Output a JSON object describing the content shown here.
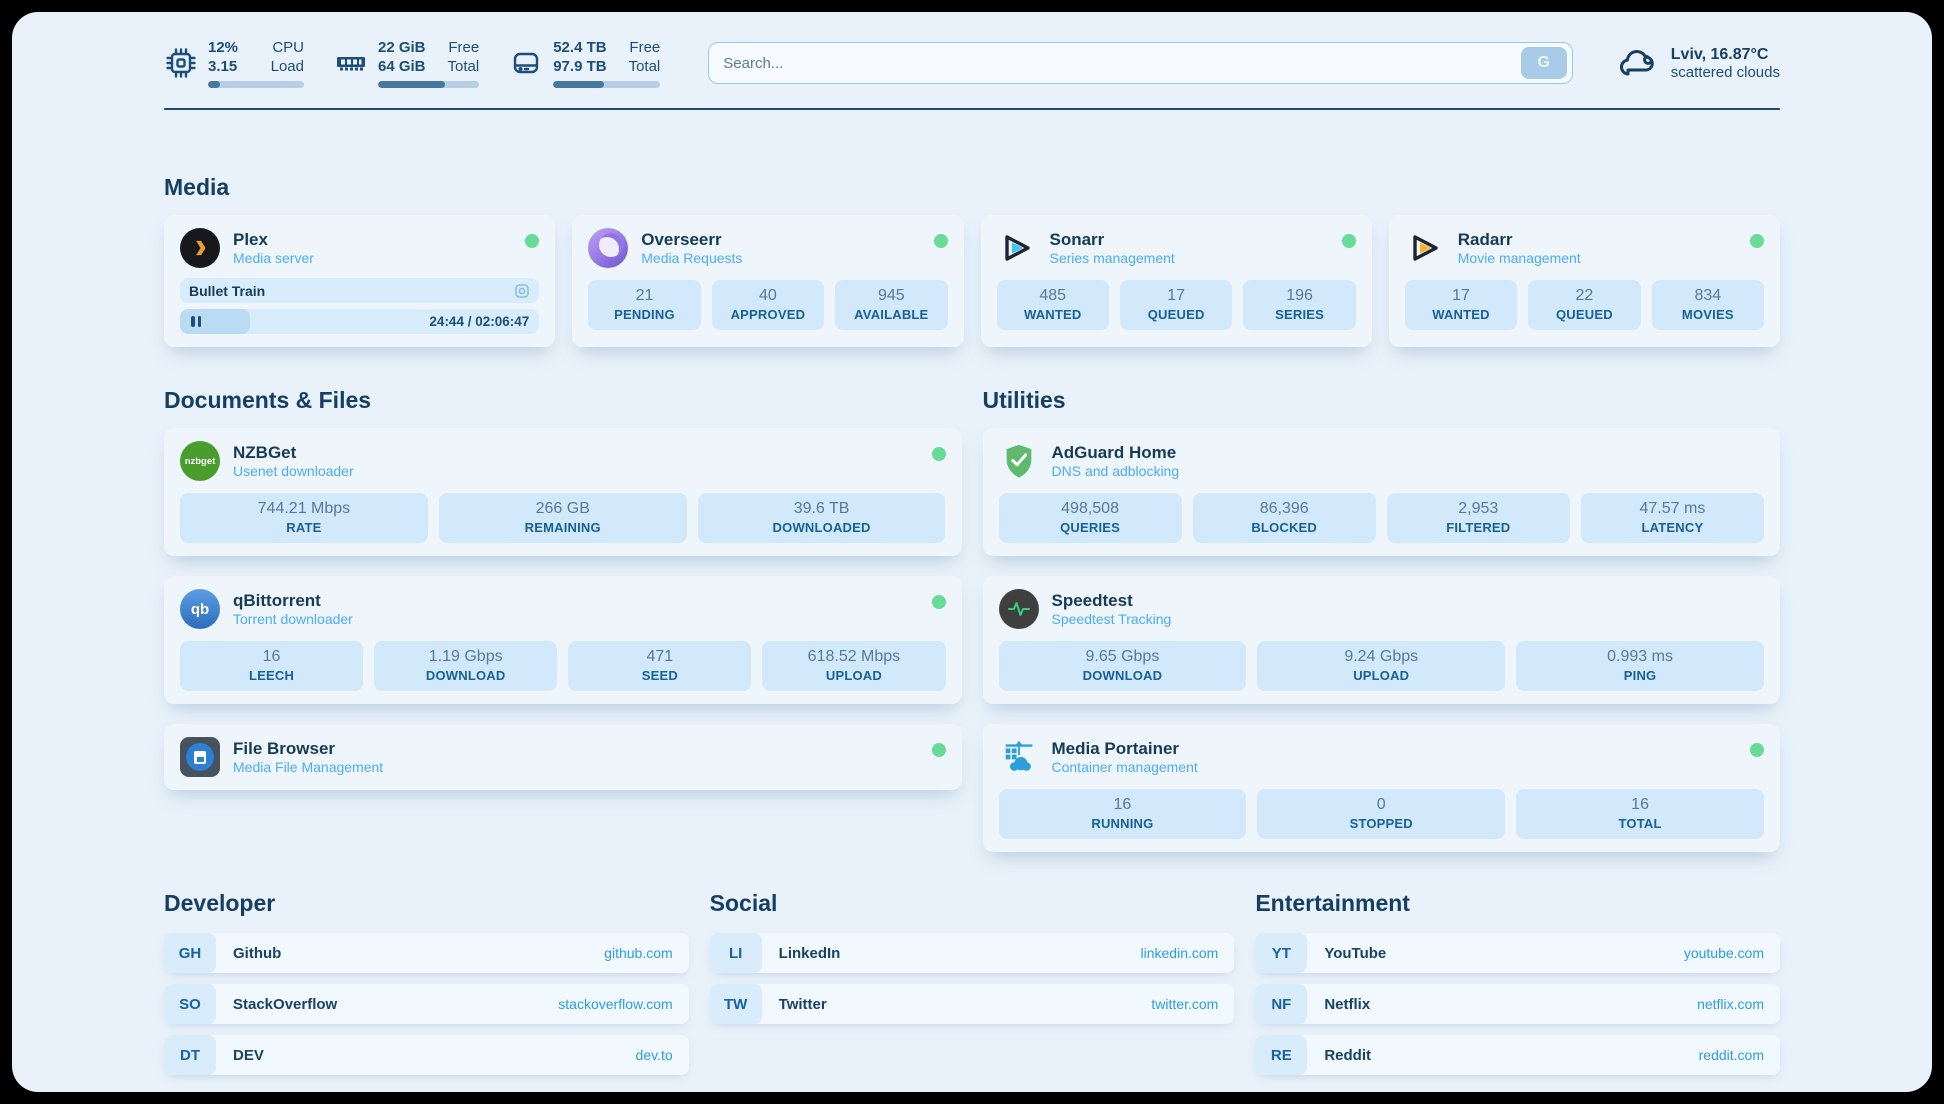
{
  "header": {
    "metrics": [
      {
        "icon": "cpu-icon",
        "value_top": "12%",
        "label_top": "CPU",
        "value_bottom": "3.15",
        "label_bottom": "Load",
        "progress_pct": 13
      },
      {
        "icon": "ram-icon",
        "value_top": "22 GiB",
        "label_top": "Free",
        "value_bottom": "64 GiB",
        "label_bottom": "Total",
        "progress_pct": 66
      },
      {
        "icon": "disk-icon",
        "value_top": "52.4 TB",
        "label_top": "Free",
        "value_bottom": "97.9 TB",
        "label_bottom": "Total",
        "progress_pct": 47
      }
    ],
    "search": {
      "placeholder": "Search...",
      "button_label": "G"
    },
    "weather": {
      "location_temp": "Lviv, 16.87°C",
      "condition": "scattered clouds"
    }
  },
  "media": {
    "title": "Media",
    "plex": {
      "name": "Plex",
      "subtitle": "Media server",
      "now_playing": "Bullet Train",
      "time": "24:44 / 02:06:47",
      "progress_pct": 19.5
    },
    "overseerr": {
      "name": "Overseerr",
      "subtitle": "Media Requests",
      "stats": [
        {
          "value": "21",
          "label": "PENDING"
        },
        {
          "value": "40",
          "label": "APPROVED"
        },
        {
          "value": "945",
          "label": "AVAILABLE"
        }
      ]
    },
    "sonarr": {
      "name": "Sonarr",
      "subtitle": "Series management",
      "stats": [
        {
          "value": "485",
          "label": "WANTED"
        },
        {
          "value": "17",
          "label": "QUEUED"
        },
        {
          "value": "196",
          "label": "SERIES"
        }
      ]
    },
    "radarr": {
      "name": "Radarr",
      "subtitle": "Movie management",
      "stats": [
        {
          "value": "17",
          "label": "WANTED"
        },
        {
          "value": "22",
          "label": "QUEUED"
        },
        {
          "value": "834",
          "label": "MOVIES"
        }
      ]
    }
  },
  "documents": {
    "title": "Documents & Files",
    "nzbget": {
      "name": "NZBGet",
      "subtitle": "Usenet downloader",
      "icon_text": "nzbget",
      "stats": [
        {
          "value": "744.21 Mbps",
          "label": "RATE"
        },
        {
          "value": "266 GB",
          "label": "REMAINING"
        },
        {
          "value": "39.6 TB",
          "label": "DOWNLOADED"
        }
      ]
    },
    "qbittorrent": {
      "name": "qBittorrent",
      "subtitle": "Torrent downloader",
      "icon_text": "qb",
      "stats": [
        {
          "value": "16",
          "label": "LEECH"
        },
        {
          "value": "1.19 Gbps",
          "label": "DOWNLOAD"
        },
        {
          "value": "471",
          "label": "SEED"
        },
        {
          "value": "618.52 Mbps",
          "label": "UPLOAD"
        }
      ]
    },
    "filebrowser": {
      "name": "File Browser",
      "subtitle": "Media File Management"
    }
  },
  "utilities": {
    "title": "Utilities",
    "adguard": {
      "name": "AdGuard Home",
      "subtitle": "DNS and adblocking",
      "stats": [
        {
          "value": "498,508",
          "label": "QUERIES"
        },
        {
          "value": "86,396",
          "label": "BLOCKED"
        },
        {
          "value": "2,953",
          "label": "FILTERED"
        },
        {
          "value": "47.57 ms",
          "label": "LATENCY"
        }
      ]
    },
    "speedtest": {
      "name": "Speedtest",
      "subtitle": "Speedtest Tracking",
      "stats": [
        {
          "value": "9.65 Gbps",
          "label": "DOWNLOAD"
        },
        {
          "value": "9.24 Gbps",
          "label": "UPLOAD"
        },
        {
          "value": "0.993 ms",
          "label": "PING"
        }
      ]
    },
    "portainer": {
      "name": "Media Portainer",
      "subtitle": "Container management",
      "stats": [
        {
          "value": "16",
          "label": "RUNNING"
        },
        {
          "value": "0",
          "label": "STOPPED"
        },
        {
          "value": "16",
          "label": "TOTAL"
        }
      ]
    }
  },
  "bookmarks": {
    "developer": {
      "title": "Developer",
      "links": [
        {
          "abbr": "GH",
          "name": "Github",
          "url": "github.com"
        },
        {
          "abbr": "SO",
          "name": "StackOverflow",
          "url": "stackoverflow.com"
        },
        {
          "abbr": "DT",
          "name": "DEV",
          "url": "dev.to"
        }
      ]
    },
    "social": {
      "title": "Social",
      "links": [
        {
          "abbr": "LI",
          "name": "LinkedIn",
          "url": "linkedin.com"
        },
        {
          "abbr": "TW",
          "name": "Twitter",
          "url": "twitter.com"
        }
      ]
    },
    "entertainment": {
      "title": "Entertainment",
      "links": [
        {
          "abbr": "YT",
          "name": "YouTube",
          "url": "youtube.com"
        },
        {
          "abbr": "NF",
          "name": "Netflix",
          "url": "netflix.com"
        },
        {
          "abbr": "RE",
          "name": "Reddit",
          "url": "reddit.com"
        }
      ]
    }
  },
  "colors": {
    "accent": "#4dabf7",
    "online": "#69db99",
    "navy": "#173e63",
    "stat_bg": "#d2e9fb"
  }
}
